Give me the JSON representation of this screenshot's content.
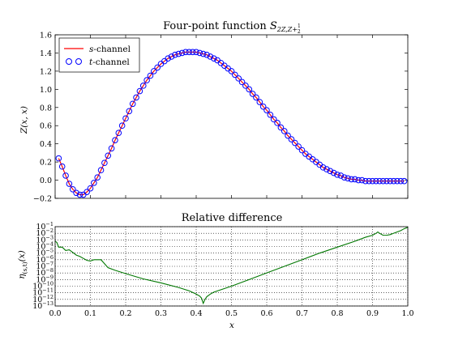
{
  "figure": {
    "bg": "#ffffff"
  },
  "chart_data": [
    {
      "type": "line",
      "title": "Four-point function S_{2Z,Z+1/2}",
      "title_main": "Four-point function ",
      "title_symbol": "S",
      "title_sub": "2Z,Z+",
      "title_frac_num": "1",
      "title_frac_den": "2",
      "xlabel": "",
      "ylabel": "Z(x, x)",
      "xlim": [
        0.0,
        1.0
      ],
      "ylim": [
        -0.2,
        1.6
      ],
      "yticks": [
        "−0.2",
        "0.0",
        "0.2",
        "0.4",
        "0.6",
        "0.8",
        "1.0",
        "1.2",
        "1.4",
        "1.6"
      ],
      "ytick_values": [
        -0.2,
        0.0,
        0.2,
        0.4,
        0.6,
        0.8,
        1.0,
        1.2,
        1.4,
        1.6
      ],
      "grid": false,
      "legend_position": "top-left",
      "series": [
        {
          "name": "s-channel",
          "name_italic": "s",
          "name_rest": "-channel",
          "style": "line",
          "color": "#ff0000",
          "x": [
            0.01,
            0.02,
            0.03,
            0.04,
            0.05,
            0.06,
            0.07,
            0.08,
            0.09,
            0.1,
            0.11,
            0.12,
            0.13,
            0.14,
            0.15,
            0.16,
            0.17,
            0.18,
            0.19,
            0.2,
            0.21,
            0.22,
            0.23,
            0.24,
            0.25,
            0.26,
            0.27,
            0.28,
            0.29,
            0.3,
            0.31,
            0.32,
            0.33,
            0.34,
            0.35,
            0.36,
            0.37,
            0.38,
            0.39,
            0.4,
            0.41,
            0.42,
            0.43,
            0.44,
            0.45,
            0.46,
            0.47,
            0.48,
            0.49,
            0.5,
            0.51,
            0.52,
            0.53,
            0.54,
            0.55,
            0.56,
            0.57,
            0.58,
            0.59,
            0.6,
            0.61,
            0.62,
            0.63,
            0.64,
            0.65,
            0.66,
            0.67,
            0.68,
            0.69,
            0.7,
            0.71,
            0.72,
            0.73,
            0.74,
            0.75,
            0.76,
            0.77,
            0.78,
            0.79,
            0.8,
            0.81,
            0.82,
            0.83,
            0.84,
            0.85,
            0.86,
            0.87,
            0.88,
            0.89,
            0.9,
            0.91,
            0.92,
            0.93,
            0.94,
            0.95,
            0.96,
            0.97,
            0.98,
            0.99
          ],
          "y": [
            0.24,
            0.15,
            0.05,
            -0.04,
            -0.1,
            -0.14,
            -0.16,
            -0.16,
            -0.13,
            -0.09,
            -0.03,
            0.03,
            0.11,
            0.19,
            0.27,
            0.35,
            0.44,
            0.52,
            0.6,
            0.68,
            0.76,
            0.84,
            0.91,
            0.98,
            1.04,
            1.1,
            1.15,
            1.2,
            1.24,
            1.28,
            1.31,
            1.34,
            1.36,
            1.38,
            1.39,
            1.4,
            1.41,
            1.41,
            1.41,
            1.41,
            1.4,
            1.39,
            1.38,
            1.36,
            1.34,
            1.32,
            1.29,
            1.26,
            1.23,
            1.2,
            1.16,
            1.12,
            1.08,
            1.04,
            1.0,
            0.95,
            0.91,
            0.86,
            0.81,
            0.77,
            0.72,
            0.67,
            0.63,
            0.58,
            0.54,
            0.49,
            0.45,
            0.41,
            0.37,
            0.33,
            0.29,
            0.26,
            0.23,
            0.2,
            0.17,
            0.14,
            0.12,
            0.1,
            0.08,
            0.06,
            0.05,
            0.03,
            0.02,
            0.01,
            0.01,
            0.0,
            0.0,
            -0.01,
            -0.01,
            -0.01,
            -0.01,
            -0.01,
            -0.01,
            -0.01,
            -0.01,
            -0.01,
            -0.01,
            -0.01,
            -0.01
          ]
        },
        {
          "name": "t-channel",
          "name_italic": "t",
          "name_rest": "-channel",
          "style": "markers",
          "color": "#0000ff",
          "x": [
            0.01,
            0.02,
            0.03,
            0.04,
            0.05,
            0.06,
            0.07,
            0.08,
            0.09,
            0.1,
            0.11,
            0.12,
            0.13,
            0.14,
            0.15,
            0.16,
            0.17,
            0.18,
            0.19,
            0.2,
            0.21,
            0.22,
            0.23,
            0.24,
            0.25,
            0.26,
            0.27,
            0.28,
            0.29,
            0.3,
            0.31,
            0.32,
            0.33,
            0.34,
            0.35,
            0.36,
            0.37,
            0.38,
            0.39,
            0.4,
            0.41,
            0.42,
            0.43,
            0.44,
            0.45,
            0.46,
            0.47,
            0.48,
            0.49,
            0.5,
            0.51,
            0.52,
            0.53,
            0.54,
            0.55,
            0.56,
            0.57,
            0.58,
            0.59,
            0.6,
            0.61,
            0.62,
            0.63,
            0.64,
            0.65,
            0.66,
            0.67,
            0.68,
            0.69,
            0.7,
            0.71,
            0.72,
            0.73,
            0.74,
            0.75,
            0.76,
            0.77,
            0.78,
            0.79,
            0.8,
            0.81,
            0.82,
            0.83,
            0.84,
            0.85,
            0.86,
            0.87,
            0.88,
            0.89,
            0.9,
            0.91,
            0.92,
            0.93,
            0.94,
            0.95,
            0.96,
            0.97,
            0.98,
            0.99
          ],
          "y": [
            0.24,
            0.15,
            0.05,
            -0.04,
            -0.1,
            -0.14,
            -0.16,
            -0.16,
            -0.13,
            -0.09,
            -0.03,
            0.03,
            0.11,
            0.19,
            0.27,
            0.35,
            0.44,
            0.52,
            0.6,
            0.68,
            0.76,
            0.84,
            0.91,
            0.98,
            1.04,
            1.1,
            1.15,
            1.2,
            1.24,
            1.28,
            1.31,
            1.34,
            1.36,
            1.38,
            1.39,
            1.4,
            1.41,
            1.41,
            1.41,
            1.41,
            1.4,
            1.39,
            1.38,
            1.36,
            1.34,
            1.32,
            1.29,
            1.26,
            1.23,
            1.2,
            1.16,
            1.12,
            1.08,
            1.04,
            1.0,
            0.95,
            0.91,
            0.86,
            0.81,
            0.77,
            0.72,
            0.67,
            0.63,
            0.58,
            0.54,
            0.49,
            0.45,
            0.41,
            0.37,
            0.33,
            0.29,
            0.26,
            0.23,
            0.2,
            0.17,
            0.14,
            0.12,
            0.1,
            0.08,
            0.06,
            0.05,
            0.03,
            0.02,
            0.01,
            0.01,
            0.0,
            0.0,
            -0.01,
            -0.01,
            -0.01,
            -0.01,
            -0.01,
            -0.01,
            -0.01,
            -0.01,
            -0.01,
            -0.01,
            -0.01,
            -0.01
          ]
        }
      ]
    },
    {
      "type": "line",
      "title": "Relative difference",
      "xlabel": "x",
      "ylabel": "η_{(s,t)}(x)",
      "ylabel_main": "η",
      "ylabel_sub": "(s,t)",
      "ylabel_tail": "(x)",
      "xlim": [
        0.0,
        1.0
      ],
      "ylim_log10": [
        -13,
        -1
      ],
      "log_scale_y": true,
      "xticks": [
        "0.0",
        "0.1",
        "0.2",
        "0.3",
        "0.4",
        "0.5",
        "0.6",
        "0.7",
        "0.8",
        "0.9",
        "1.0"
      ],
      "xtick_values": [
        0.0,
        0.1,
        0.2,
        0.3,
        0.4,
        0.5,
        0.6,
        0.7,
        0.8,
        0.9,
        1.0
      ],
      "ytick_base": "10",
      "ytick_exponents": [
        "−13",
        "−12",
        "−11",
        "−10",
        "−9",
        "−8",
        "−7",
        "−6",
        "−5",
        "−4",
        "−3",
        "−2",
        "−1"
      ],
      "ytick_values_log10": [
        -13,
        -12,
        -11,
        -10,
        -9,
        -8,
        -7,
        -6,
        -5,
        -4,
        -3,
        -2,
        -1
      ],
      "grid": true,
      "series": [
        {
          "color": "#007700",
          "x": [
            0.0,
            0.005,
            0.01,
            0.02,
            0.03,
            0.04,
            0.05,
            0.06,
            0.07,
            0.08,
            0.09,
            0.1,
            0.11,
            0.12,
            0.13,
            0.14,
            0.15,
            0.17,
            0.2,
            0.25,
            0.3,
            0.35,
            0.38,
            0.4,
            0.41,
            0.415,
            0.42,
            0.425,
            0.43,
            0.44,
            0.45,
            0.5,
            0.55,
            0.6,
            0.65,
            0.7,
            0.75,
            0.8,
            0.85,
            0.88,
            0.9,
            0.91,
            0.915,
            0.92,
            0.93,
            0.94,
            0.95,
            0.96,
            0.97,
            0.98,
            0.99,
            1.0
          ],
          "log10_y": [
            -3.2,
            -3.4,
            -4.1,
            -4.1,
            -4.6,
            -4.5,
            -4.9,
            -5.3,
            -5.5,
            -5.8,
            -6.1,
            -6.2,
            -6.0,
            -6.0,
            -6.0,
            -6.6,
            -7.2,
            -7.6,
            -8.1,
            -8.9,
            -9.5,
            -10.2,
            -10.7,
            -11.2,
            -11.5,
            -11.8,
            -12.6,
            -12.0,
            -11.6,
            -11.2,
            -10.9,
            -10.0,
            -9.0,
            -8.0,
            -7.0,
            -6.0,
            -5.0,
            -4.1,
            -3.2,
            -2.6,
            -2.3,
            -2.0,
            -1.8,
            -2.0,
            -2.3,
            -2.3,
            -2.2,
            -2.0,
            -1.8,
            -1.6,
            -1.3,
            -1.1
          ]
        }
      ]
    }
  ]
}
